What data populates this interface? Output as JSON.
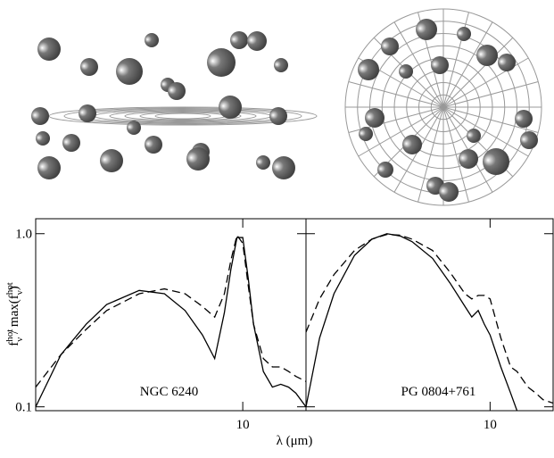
{
  "figure": {
    "xlabel": "λ (μm)",
    "ylabel_parts": [
      "f",
      "hot",
      "ν",
      " / max(f",
      "hot",
      "ν",
      ")"
    ]
  },
  "chart_data": [
    {
      "type": "line",
      "log_x": true,
      "log_y": true,
      "annotation": "NGC 6240",
      "xlim": [
        1.6,
        17.5
      ],
      "ylim": [
        0.095,
        1.22
      ],
      "xticks": [
        10
      ],
      "yticks": [
        {
          "value": 1,
          "label": "1.0"
        },
        0.1
      ],
      "x": [
        1.6,
        2,
        2.5,
        3,
        4,
        5,
        6,
        7,
        7.8,
        8.5,
        9,
        9.5,
        10,
        10.5,
        11,
        12,
        13,
        14,
        15,
        16,
        17.5
      ],
      "series": [
        {
          "style": "solid",
          "color": "#000000",
          "values": [
            0.1,
            0.2,
            0.3,
            0.39,
            0.47,
            0.45,
            0.36,
            0.26,
            0.19,
            0.35,
            0.62,
            0.95,
            0.95,
            0.55,
            0.3,
            0.16,
            0.13,
            0.135,
            0.13,
            0.12,
            0.1
          ]
        },
        {
          "style": "dashed",
          "color": "#000000",
          "values": [
            0.13,
            0.2,
            0.28,
            0.36,
            0.45,
            0.48,
            0.45,
            0.38,
            0.33,
            0.45,
            0.7,
            0.98,
            0.88,
            0.5,
            0.3,
            0.19,
            0.17,
            0.17,
            0.16,
            0.15,
            0.14
          ]
        }
      ]
    },
    {
      "type": "line",
      "log_x": true,
      "log_y": true,
      "annotation": "PG 0804+761",
      "xlim": [
        1.95,
        17.5
      ],
      "ylim": [
        0.095,
        1.22
      ],
      "xticks": [
        10
      ],
      "x": [
        1.95,
        2.2,
        2.5,
        3,
        3.5,
        4,
        4.5,
        5,
        6,
        7,
        8,
        8.5,
        9,
        9.5,
        10,
        11,
        12,
        12.7,
        14,
        15,
        16,
        17.5
      ],
      "series": [
        {
          "style": "solid",
          "color": "#000000",
          "values": [
            0.1,
            0.25,
            0.45,
            0.75,
            0.93,
            1.0,
            0.97,
            0.9,
            0.72,
            0.52,
            0.38,
            0.33,
            0.36,
            0.3,
            0.26,
            0.17,
            0.12,
            0.095,
            null,
            null,
            null,
            null
          ]
        },
        {
          "style": "dashed",
          "color": "#000000",
          "values": [
            0.27,
            0.42,
            0.58,
            0.8,
            0.93,
            0.99,
            0.98,
            0.93,
            0.8,
            0.6,
            0.45,
            0.42,
            0.44,
            0.44,
            0.42,
            0.25,
            0.17,
            0.16,
            0.13,
            0.12,
            0.11,
            0.105
          ]
        }
      ]
    }
  ]
}
